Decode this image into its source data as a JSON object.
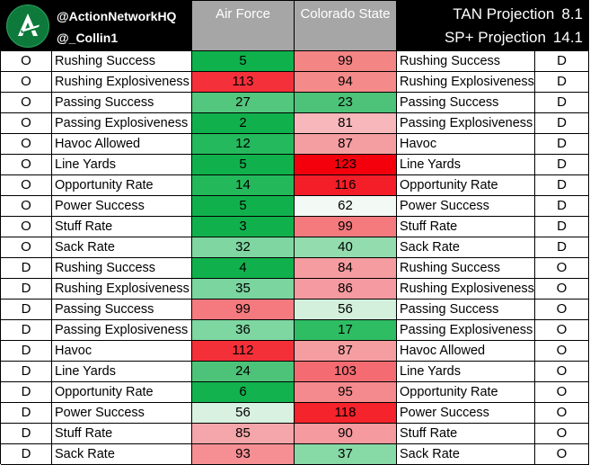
{
  "header": {
    "handle_primary": "@ActionNetworkHQ",
    "handle_secondary": "@_Collin1",
    "team1": "Air Force",
    "team2": "Colorado State",
    "tan_label": "TAN Projection",
    "tan_value": "8.1",
    "sp_label": "SP+ Projection",
    "sp_value": "14.1"
  },
  "rows": [
    {
      "left_unit": "O",
      "left_stat": "Rushing Success",
      "af": "5",
      "af_color": "#0fb14d",
      "csu": "99",
      "csu_color": "#f48585",
      "right_stat": "Rushing Success",
      "right_unit": "D"
    },
    {
      "left_unit": "O",
      "left_stat": "Rushing Explosiveness",
      "af": "113",
      "af_color": "#f4303a",
      "csu": "94",
      "csu_color": "#f58a8a",
      "right_stat": "Rushing Explosiveness",
      "right_unit": "D"
    },
    {
      "left_unit": "O",
      "left_stat": "Passing Success",
      "af": "27",
      "af_color": "#52c77d",
      "csu": "23",
      "csu_color": "#4cc378",
      "right_stat": "Passing Success",
      "right_unit": "D"
    },
    {
      "left_unit": "O",
      "left_stat": "Passing Explosiveness",
      "af": "2",
      "af_color": "#10b14c",
      "csu": "81",
      "csu_color": "#f8b8bb",
      "right_stat": "Passing Explosiveness",
      "right_unit": "D"
    },
    {
      "left_unit": "O",
      "left_stat": "Havoc Allowed",
      "af": "12",
      "af_color": "#24b95c",
      "csu": "87",
      "csu_color": "#f59ea1",
      "right_stat": "Havoc",
      "right_unit": "D"
    },
    {
      "left_unit": "O",
      "left_stat": "Line Yards",
      "af": "5",
      "af_color": "#10b14c",
      "csu": "123",
      "csu_color": "#f3000c",
      "right_stat": "Line Yards",
      "right_unit": "D"
    },
    {
      "left_unit": "O",
      "left_stat": "Opportunity Rate",
      "af": "14",
      "af_color": "#23b95b",
      "csu": "116",
      "csu_color": "#f41e28",
      "right_stat": "Opportunity Rate",
      "right_unit": "D"
    },
    {
      "left_unit": "O",
      "left_stat": "Power Success",
      "af": "5",
      "af_color": "#10b14c",
      "csu": "62",
      "csu_color": "#f3f9f4",
      "right_stat": "Power Success",
      "right_unit": "D"
    },
    {
      "left_unit": "O",
      "left_stat": "Stuff Rate",
      "af": "3",
      "af_color": "#10b14c",
      "csu": "99",
      "csu_color": "#f47a7e",
      "right_stat": "Stuff Rate",
      "right_unit": "D"
    },
    {
      "left_unit": "O",
      "left_stat": "Sack Rate",
      "af": "32",
      "af_color": "#7fd6a1",
      "csu": "40",
      "csu_color": "#92dcae",
      "right_stat": "Sack Rate",
      "right_unit": "D"
    },
    {
      "left_unit": "D",
      "left_stat": "Rushing Success",
      "af": "4",
      "af_color": "#10b14c",
      "csu": "84",
      "csu_color": "#f59ca0",
      "right_stat": "Rushing Success",
      "right_unit": "O"
    },
    {
      "left_unit": "D",
      "left_stat": "Rushing Explosiveness",
      "af": "35",
      "af_color": "#7ad59e",
      "csu": "86",
      "csu_color": "#f59aa0",
      "right_stat": "Rushing Explosiveness",
      "right_unit": "O"
    },
    {
      "left_unit": "D",
      "left_stat": "Passing Success",
      "af": "99",
      "af_color": "#f47a7f",
      "csu": "56",
      "csu_color": "#d3f0dc",
      "right_stat": "Passing Success",
      "right_unit": "O"
    },
    {
      "left_unit": "D",
      "left_stat": "Passing Explosiveness",
      "af": "36",
      "af_color": "#7ed6a0",
      "csu": "17",
      "csu_color": "#2fbd64",
      "right_stat": "Passing Explosiveness",
      "right_unit": "O"
    },
    {
      "left_unit": "D",
      "left_stat": "Havoc",
      "af": "112",
      "af_color": "#f33038",
      "csu": "87",
      "csu_color": "#f59ea1",
      "right_stat": "Havoc Allowed",
      "right_unit": "O"
    },
    {
      "left_unit": "D",
      "left_stat": "Line Yards",
      "af": "24",
      "af_color": "#4cc378",
      "csu": "103",
      "csu_color": "#f46c72",
      "right_stat": "Line Yards",
      "right_unit": "O"
    },
    {
      "left_unit": "D",
      "left_stat": "Opportunity Rate",
      "af": "6",
      "af_color": "#12b24e",
      "csu": "95",
      "csu_color": "#f58a8e",
      "right_stat": "Opportunity Rate",
      "right_unit": "O"
    },
    {
      "left_unit": "D",
      "left_stat": "Power Success",
      "af": "56",
      "af_color": "#d8f1e0",
      "csu": "118",
      "csu_color": "#f4232c",
      "right_stat": "Power Success",
      "right_unit": "O"
    },
    {
      "left_unit": "D",
      "left_stat": "Stuff Rate",
      "af": "85",
      "af_color": "#f5a6aa",
      "csu": "90",
      "csu_color": "#f59a9e",
      "right_stat": "Stuff Rate",
      "right_unit": "O"
    },
    {
      "left_unit": "D",
      "left_stat": "Sack Rate",
      "af": "93",
      "af_color": "#f58f93",
      "csu": "37",
      "csu_color": "#87d9a6",
      "right_stat": "Sack Rate",
      "right_unit": "O"
    }
  ]
}
